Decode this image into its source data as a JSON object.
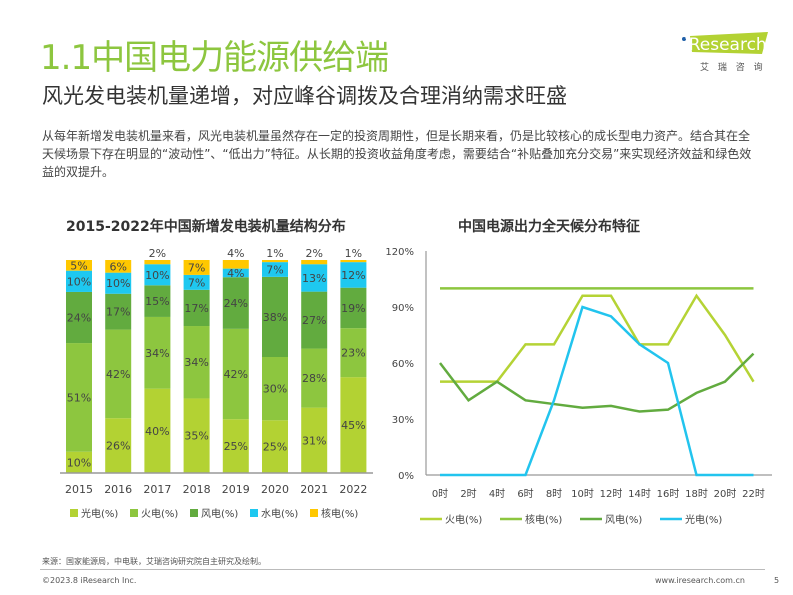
{
  "header": {
    "title": "1.1中国电力能源供给端",
    "subtitle": "风光发电装机量递增，对应峰谷调拨及合理消纳需求旺盛",
    "logo_text": "iResearch",
    "logo_cn": "艾 瑞 咨 询"
  },
  "body_text": "从每年新增发电装机量来看，风光电装机量虽然存在一定的投资周期性，但是长期来看，仍是比较核心的成长型电力资产。结合其在全天候场景下存在明显的“波动性”、“低出力”特征。从长期的投资收益角度考虑，需要结合“补贴叠加充分交易”来实现经济效益和绿色效益的双提升。",
  "footer": {
    "source": "来源：国家能源局，中电联，艾瑞咨询研究院自主研究及绘制。",
    "copyright": "©2023.8 iResearch Inc.",
    "url": "www.iresearch.com.cn",
    "page": "5"
  },
  "chart_data": [
    {
      "type": "bar",
      "stacked": true,
      "title": "2015-2022年中国新增发电装机量结构分布",
      "categories": [
        "2015",
        "2016",
        "2017",
        "2018",
        "2019",
        "2020",
        "2021",
        "2022"
      ],
      "legend": "bottom",
      "series": [
        {
          "name": "光电(%)",
          "color": "#b3d233",
          "values": [
            10,
            26,
            40,
            35,
            25,
            25,
            31,
            45
          ]
        },
        {
          "name": "火电(%)",
          "color": "#8dc63f",
          "values": [
            51,
            42,
            34,
            34,
            42,
            30,
            28,
            23
          ]
        },
        {
          "name": "风电(%)",
          "color": "#62ab3f",
          "values": [
            24,
            17,
            15,
            17,
            24,
            38,
            27,
            19
          ]
        },
        {
          "name": "水电(%)",
          "color": "#1ec8f0",
          "values": [
            10,
            10,
            10,
            7,
            4,
            7,
            13,
            12
          ]
        },
        {
          "name": "核电(%)",
          "color": "#ffc800",
          "values": [
            5,
            6,
            2,
            7,
            4,
            1,
            2,
            1
          ]
        }
      ]
    },
    {
      "type": "line",
      "title": "中国电源出力全天候分布特征",
      "categories": [
        "0时",
        "2时",
        "4时",
        "6时",
        "8时",
        "10时",
        "12时",
        "14时",
        "16时",
        "18时",
        "20时",
        "22时"
      ],
      "ylim": [
        0,
        120
      ],
      "yticks": [
        "0%",
        "30%",
        "60%",
        "90%",
        "120%"
      ],
      "legend": "bottom",
      "series": [
        {
          "name": "火电(%)",
          "color": "#b5d335",
          "values": [
            50,
            50,
            50,
            70,
            70,
            96,
            96,
            70,
            70,
            96,
            75,
            50
          ]
        },
        {
          "name": "核电(%)",
          "color": "#8dc63f",
          "values": [
            100,
            100,
            100,
            100,
            100,
            100,
            100,
            100,
            100,
            100,
            100,
            100
          ]
        },
        {
          "name": "风电(%)",
          "color": "#62ab3f",
          "values": [
            60,
            40,
            50,
            40,
            38,
            36,
            37,
            34,
            35,
            44,
            50,
            65
          ]
        },
        {
          "name": "光电(%)",
          "color": "#22c4ee",
          "values": [
            0,
            0,
            0,
            0,
            40,
            90,
            85,
            70,
            60,
            0,
            0,
            0
          ]
        }
      ]
    }
  ]
}
